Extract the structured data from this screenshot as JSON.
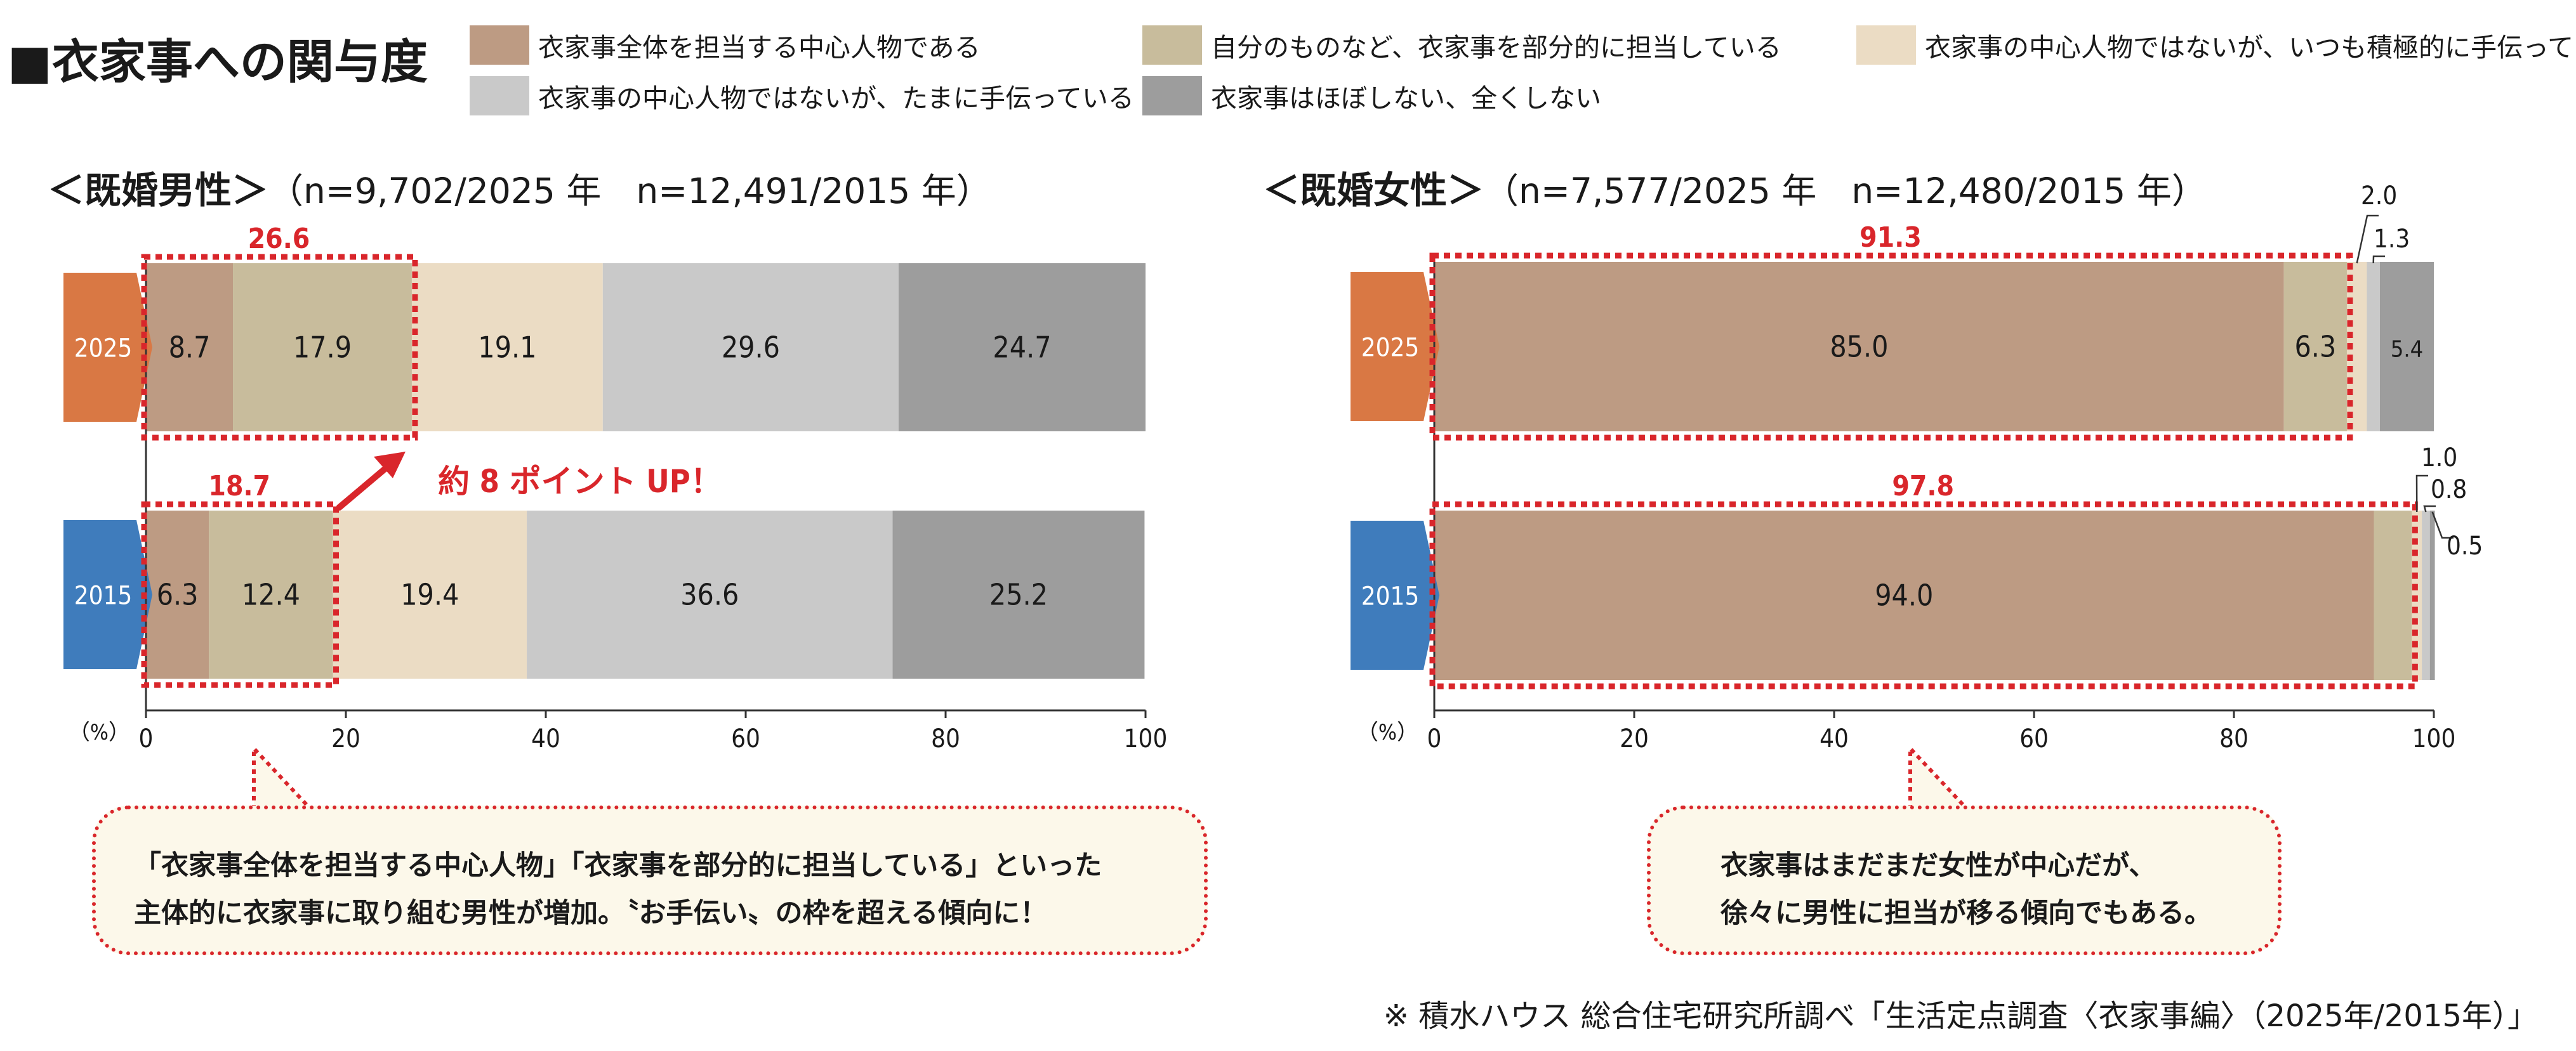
{
  "title": "■衣家事への関与度",
  "legend": [
    {
      "label": "衣家事全体を担当する中心人物である",
      "color": "#bd9b83"
    },
    {
      "label": "自分のものなど、衣家事を部分的に担当している",
      "color": "#c8bc9c"
    },
    {
      "label": "衣家事の中心人物ではないが、いつも積極的に手伝っている",
      "color": "#ebdcc4"
    },
    {
      "label": "衣家事の中心人物ではないが、たまに手伝っている",
      "color": "#c9c9c9"
    },
    {
      "label": "衣家事はほぼしない、全くしない",
      "color": "#9d9d9d"
    }
  ],
  "highlight_color": "#d9262b",
  "year_colors": {
    "2025": "#d97844",
    "2015": "#3f7cbc"
  },
  "annotation_arrow_text": "約 8 ポイント UP！",
  "callouts": {
    "male": [
      "「衣家事全体を担当する中心人物」「衣家事を部分的に担当している」といった",
      "主体的に衣家事に取り組む男性が増加。〝お手伝い〟の枠を超える傾向に！"
    ],
    "female": [
      "衣家事はまだまだ女性が中心だが、",
      "徐々に男性に担当が移る傾向でもある。"
    ]
  },
  "source": "※ 積水ハウス 総合住宅研究所調べ「生活定点調査〈衣家事編〉（2025年/2015年）」",
  "chart_data": [
    {
      "type": "bar",
      "orientation": "horizontal-stacked-100",
      "title": "＜既婚男性＞",
      "subtitle": "（n=9,702/2025 年　n=12,491/2015 年）",
      "categories": [
        "2025",
        "2015"
      ],
      "unit_label": "（%）",
      "xlim": [
        0,
        100
      ],
      "xticks": [
        "0",
        "20",
        "40",
        "60",
        "80",
        "100"
      ],
      "series": [
        {
          "name": "衣家事全体を担当する中心人物である",
          "values": [
            8.7,
            6.3
          ]
        },
        {
          "name": "自分のものなど、衣家事を部分的に担当している",
          "values": [
            17.9,
            12.4
          ]
        },
        {
          "name": "衣家事の中心人物ではないが、いつも積極的に手伝っている",
          "values": [
            19.1,
            19.4
          ]
        },
        {
          "name": "衣家事の中心人物ではないが、たまに手伝っている",
          "values": [
            29.6,
            36.6
          ]
        },
        {
          "name": "衣家事はほぼしない、全くしない",
          "values": [
            24.7,
            25.2
          ]
        }
      ],
      "highlight_totals": [
        "26.6",
        "18.7"
      ]
    },
    {
      "type": "bar",
      "orientation": "horizontal-stacked-100",
      "title": "＜既婚女性＞",
      "subtitle": "（n=7,577/2025 年　n=12,480/2015 年）",
      "categories": [
        "2025",
        "2015"
      ],
      "unit_label": "（%）",
      "xlim": [
        0,
        100
      ],
      "xticks": [
        "0",
        "20",
        "40",
        "60",
        "80",
        "100"
      ],
      "series": [
        {
          "name": "衣家事全体を担当する中心人物である",
          "values": [
            85.0,
            94.0
          ]
        },
        {
          "name": "自分のものなど、衣家事を部分的に担当している",
          "values": [
            6.3,
            3.8
          ]
        },
        {
          "name": "衣家事の中心人物ではないが、いつも積極的に手伝っている",
          "values": [
            2.0,
            1.0
          ]
        },
        {
          "name": "衣家事の中心人物ではないが、たまに手伝っている",
          "values": [
            1.3,
            0.8
          ]
        },
        {
          "name": "衣家事はほぼしない、全くしない",
          "values": [
            5.4,
            0.5
          ]
        }
      ],
      "highlight_totals": [
        "91.3",
        "97.8"
      ]
    }
  ]
}
